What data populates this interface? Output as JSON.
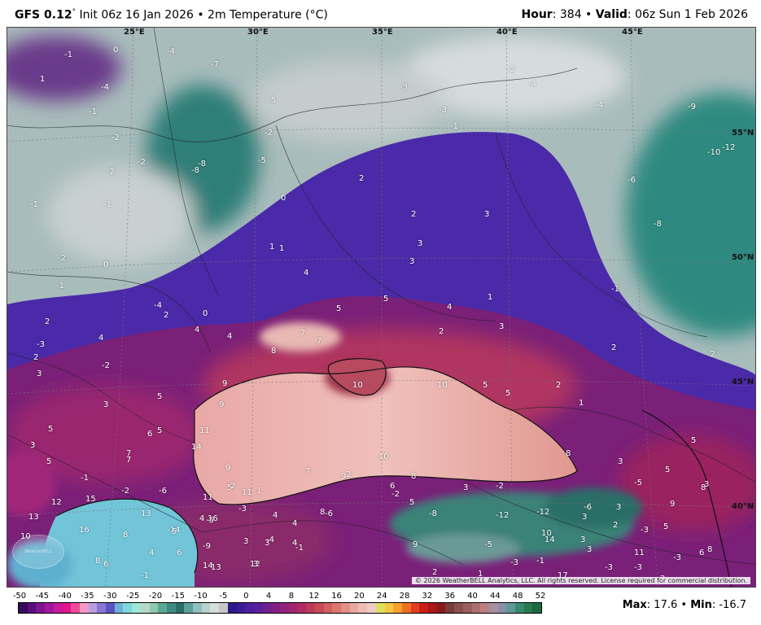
{
  "header": {
    "model": "GFS 0.12",
    "model_sup": "°",
    "init": " Init 06z 16 Jan 2026 • 2m Temperature (°C)",
    "hour_label": "Hour",
    "hour_value": ": 384 • ",
    "valid_label": "Valid",
    "valid_value": ": 06z Sun 1 Feb 2026"
  },
  "longitude_labels": [
    "25°E",
    "30°E",
    "35°E",
    "40°E",
    "45°E"
  ],
  "latitude_labels": [
    "55°N",
    "50°N",
    "45°N",
    "40°N"
  ],
  "temperature_labels": [
    "-1",
    "-4",
    "-7",
    "0",
    "1",
    "-4",
    "-1",
    "-5",
    "-2",
    "-3",
    "-2",
    "-3",
    "-4",
    "-9",
    "-2",
    "-4",
    "-8",
    "-8",
    "-5",
    "-2",
    "-2",
    "0",
    "-1",
    "-1",
    "2",
    "-10",
    "-12",
    "-6",
    "2",
    "3",
    "-8",
    "-2",
    "1",
    "1",
    "3",
    "0",
    "-1",
    "-1",
    "3",
    "4",
    "-1",
    "-4",
    "2",
    "5",
    "5",
    "4",
    "1",
    "3",
    "4",
    "0",
    "-3",
    "2",
    "4",
    "4",
    "7",
    "7",
    "3",
    "2",
    "-2",
    "2",
    "8",
    "2",
    "-2",
    "10",
    "10",
    "5",
    "9",
    "5",
    "2",
    "9",
    "3",
    "5",
    "5",
    "5",
    "1",
    "6",
    "11",
    "-1",
    "9",
    "7",
    "14",
    "3",
    "5",
    "5",
    "8",
    "10",
    "7",
    "3",
    "8",
    "2",
    "-2",
    "5",
    "7",
    "8",
    "3",
    "-2",
    "11",
    "5",
    "9",
    "11",
    "2",
    "9",
    "1",
    "6",
    "12",
    "-2",
    "5",
    "13",
    "15",
    "-6",
    "-8",
    "-12",
    "-12",
    "-6",
    "3",
    "10",
    "4",
    "16",
    "4",
    "13",
    "8",
    "-14",
    "-5",
    "3",
    "2",
    "-5",
    "-6",
    "-3",
    "5",
    "3",
    "3",
    "4",
    "-4",
    "3",
    "9",
    "-1",
    "-9",
    "-5",
    "14",
    "11",
    "10",
    "16",
    "8",
    "5",
    "4",
    "-3",
    "3",
    "3",
    "-3",
    "-3",
    "6",
    "8",
    "12",
    "13",
    "8",
    "6",
    "14",
    "4",
    "6",
    "3",
    "2",
    "1",
    "-3",
    "-1",
    "-3",
    "2",
    "17",
    "-1"
  ],
  "copyright": "© 2026 WeatherBELL Analytics, LLC. All rights reserved. License required for commercial distribution.",
  "watermark": "WeatherBELL",
  "colorbar": {
    "ticks": [
      "-50",
      "-45",
      "-40",
      "-35",
      "-30",
      "-25",
      "-20",
      "-15",
      "-10",
      "-5",
      "0",
      "4",
      "8",
      "12",
      "16",
      "20",
      "24",
      "28",
      "32",
      "36",
      "40",
      "44",
      "48",
      "52"
    ],
    "colors": [
      "#3a0a5e",
      "#5b0f7a",
      "#7d1592",
      "#a3179e",
      "#c81a9a",
      "#e0168a",
      "#f04a9a",
      "#f29ac4",
      "#b89ee0",
      "#8c76d4",
      "#5a52c4",
      "#6fb0d6",
      "#7fd8e0",
      "#9ee8d8",
      "#b8d8c8",
      "#8ec8b0",
      "#5aa896",
      "#3f8a80",
      "#2a6e6a",
      "#5f9e9a",
      "#8fbfbf",
      "#b8d0d0",
      "#d8dcdc",
      "#c8c8c8",
      "#2e1a8a",
      "#3b1c96",
      "#4a1fa0",
      "#5a1f9a",
      "#6e2090",
      "#822086",
      "#93227a",
      "#a2266e",
      "#b02d62",
      "#bc3a5a",
      "#c84a5a",
      "#d2605e",
      "#da7870",
      "#e29088",
      "#e8a8a0",
      "#ecbcb6",
      "#f0ccc6",
      "#e0e060",
      "#f4c840",
      "#f8a030",
      "#f07020",
      "#e04020",
      "#c82018",
      "#a81818",
      "#8a1818",
      "#7a3a3a",
      "#8a5050",
      "#9a6060",
      "#aa7070",
      "#b88080",
      "#a890a0",
      "#8a90a8",
      "#609898",
      "#3a8a70",
      "#2a7a50",
      "#1a6a40"
    ]
  },
  "stats": {
    "max_label": "Max",
    "max_value": ": 17.6 • ",
    "min_label": "Min",
    "min_value": ": -16.7"
  }
}
